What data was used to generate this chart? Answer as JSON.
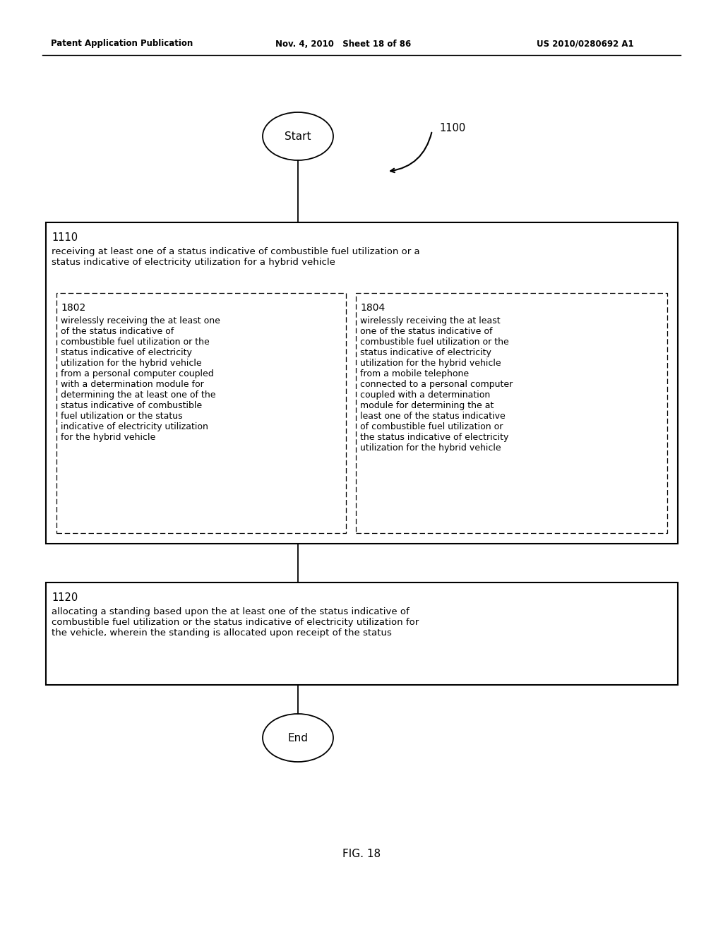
{
  "bg_color": "#ffffff",
  "header_left": "Patent Application Publication",
  "header_mid": "Nov. 4, 2010   Sheet 18 of 86",
  "header_right": "US 2010/0280692 A1",
  "fig_label": "FIG. 18",
  "start_label": "Start",
  "end_label": "End",
  "arrow_label": "1100",
  "box1110_label": "1110",
  "box1110_text": "receiving at least one of a status indicative of combustible fuel utilization or a\nstatus indicative of electricity utilization for a hybrid vehicle",
  "box1802_label": "1802",
  "box1802_text": "wirelessly receiving the at least one\nof the status indicative of\ncombustible fuel utilization or the\nstatus indicative of electricity\nutilization for the hybrid vehicle\nfrom a personal computer coupled\nwith a determination module for\ndetermining the at least one of the\nstatus indicative of combustible\nfuel utilization or the status\nindicative of electricity utilization\nfor the hybrid vehicle",
  "box1804_label": "1804",
  "box1804_text": "wirelessly receiving the at least\none of the status indicative of\ncombustible fuel utilization or the\nstatus indicative of electricity\nutilization for the hybrid vehicle\nfrom a mobile telephone\nconnected to a personal computer\ncoupled with a determination\nmodule for determining the at\nleast one of the status indicative\nof combustible fuel utilization or\nthe status indicative of electricity\nutilization for the hybrid vehicle",
  "box1120_label": "1120",
  "box1120_text": "allocating a standing based upon the at least one of the status indicative of\ncombustible fuel utilization or the status indicative of electricity utilization for\nthe vehicle, wherein the standing is allocated upon receipt of the status"
}
